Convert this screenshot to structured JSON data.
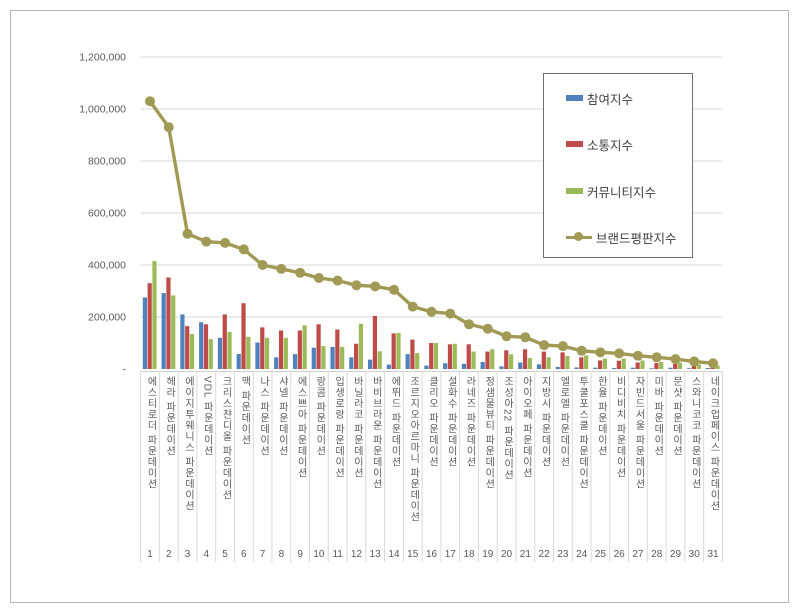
{
  "chart_data": {
    "type": "bar+line",
    "title": "",
    "categories": [
      "에스티로더 파운데이션",
      "헤라 파운데이션",
      "에이지투웨니스 파운데이션",
      "VDL 파운데이션",
      "크리스챤디올 파운데이션",
      "맥 파운데이션",
      "나스 파운데이션",
      "샤넬 파운데이션",
      "에스쁘아 파운데이션",
      "랑콤 파운데이션",
      "입생로랑 파운데이션",
      "바닐라코 파운데이션",
      "바비브라운 파운데이션",
      "에뛰드 파운데이션",
      "조르지오아르마니 파운데이션",
      "클리오 파운데이션",
      "설화수 파운데이션",
      "라네즈 파운데이션",
      "정샘물뷰티 파운데이션",
      "조성아22 파운데이션",
      "아이오페 파운데이션",
      "지방시 파운데이션",
      "엘로엘 파운데이션",
      "투쿨포스쿨 파운데이션",
      "한율 파운데이션",
      "비디비치 파운데이션",
      "자빈드서울 파운데이션",
      "미바 파운데이션",
      "문샷 파운데이션",
      "스와니코코 파운데이션",
      "네이크업페이스 파운데이션"
    ],
    "ranks": [
      "1",
      "2",
      "3",
      "4",
      "5",
      "6",
      "7",
      "8",
      "9",
      "10",
      "11",
      "12",
      "13",
      "14",
      "15",
      "16",
      "17",
      "18",
      "19",
      "20",
      "21",
      "22",
      "23",
      "24",
      "25",
      "26",
      "27",
      "28",
      "29",
      "30",
      "31"
    ],
    "series": [
      {
        "name": "참여지수",
        "type": "bar",
        "color": "#4F81BD",
        "values": [
          275000,
          292000,
          210000,
          180000,
          120000,
          58000,
          102000,
          45000,
          57000,
          82000,
          85000,
          45000,
          36000,
          17000,
          57000,
          13000,
          22000,
          20000,
          27000,
          10000,
          25000,
          18000,
          8000,
          6000,
          5000,
          4000,
          5000,
          3000,
          5000,
          3000,
          4000
        ]
      },
      {
        "name": "소통지수",
        "type": "bar",
        "color": "#BE4B48",
        "values": [
          330000,
          352000,
          165000,
          172000,
          210000,
          253000,
          160000,
          148000,
          148000,
          172000,
          152000,
          97000,
          204000,
          137000,
          113000,
          100000,
          95000,
          95000,
          67000,
          72000,
          76000,
          67000,
          64000,
          45000,
          33000,
          32000,
          25000,
          23000,
          20000,
          15000,
          13000
        ]
      },
      {
        "name": "커뮤니티지수",
        "type": "bar",
        "color": "#9BBB59",
        "values": [
          415000,
          283000,
          135000,
          115000,
          143000,
          124000,
          120000,
          120000,
          168000,
          88000,
          85000,
          174000,
          68000,
          139000,
          61000,
          100000,
          97000,
          67000,
          76000,
          57000,
          42000,
          45000,
          50000,
          52000,
          40000,
          40000,
          33000,
          27000,
          25000,
          18000,
          14000
        ]
      },
      {
        "name": "브랜드평판지수",
        "type": "line",
        "color": "#A19A55",
        "values": [
          1030000,
          930000,
          520000,
          490000,
          485000,
          460000,
          400000,
          385000,
          370000,
          350000,
          340000,
          322000,
          318000,
          305000,
          240000,
          220000,
          213000,
          172000,
          155000,
          126000,
          122000,
          92000,
          88000,
          70000,
          64000,
          60000,
          51000,
          45000,
          38000,
          29000,
          22000
        ]
      }
    ],
    "y_axis": {
      "min": 0,
      "max": 1200000,
      "step": 200000,
      "tick_labels": [
        "-",
        "200,000",
        "400,000",
        "600,000",
        "800,000",
        "1,000,000",
        "1,200,000"
      ]
    },
    "grid": true,
    "legend_position": "upper-right"
  },
  "colors": {
    "background": "#ffffff",
    "frame_border": "#b7b7b7",
    "gridline": "#d9d9d9",
    "axis_line": "#d0d0d0",
    "axis_text": "#595959",
    "legend_border": "#6e6e6e",
    "legend_text": "#404040"
  }
}
